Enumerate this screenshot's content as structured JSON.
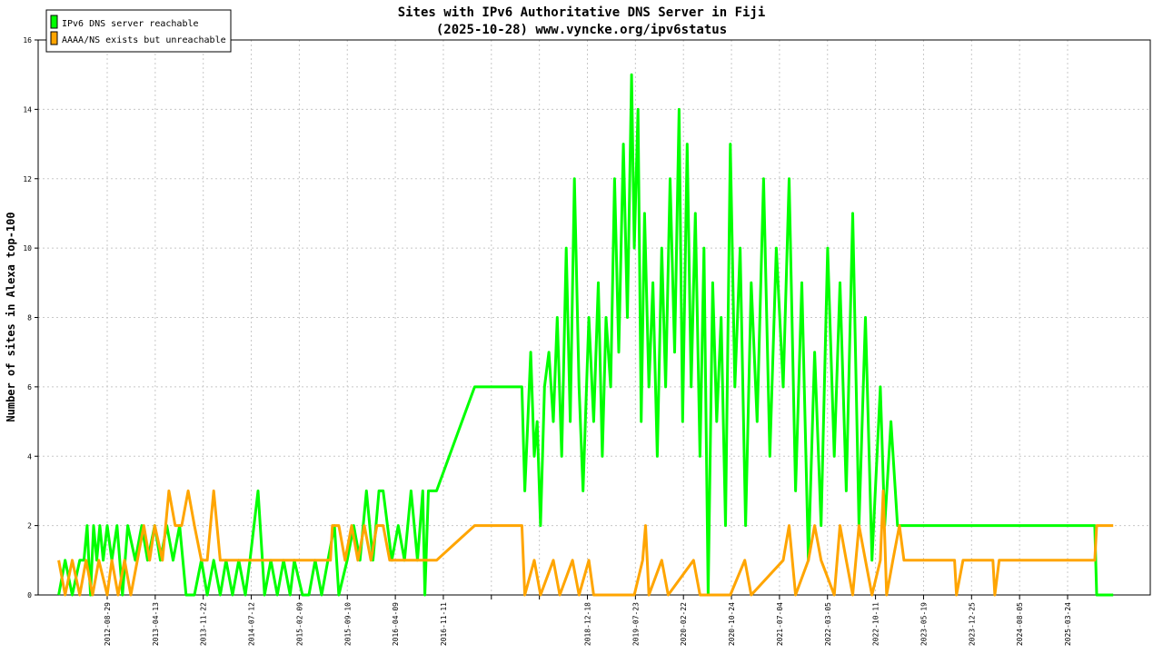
{
  "chart_data": {
    "type": "line",
    "title_line1": "Sites with IPv6 Authoritative DNS Server in Fiji",
    "title_line2": "(2025-10-28) www.vyncke.org/ipv6status",
    "xlabel": "",
    "ylabel": "Number of sites in Alexa top-100",
    "ylim": [
      0,
      16
    ],
    "yticks": [
      "0",
      "2",
      "4",
      "6",
      "8",
      "10",
      "12",
      "14",
      "16"
    ],
    "grid": true,
    "legend_position": "top-left",
    "x_ticks": [
      "2012-08-29",
      "2013-04-13",
      "2013-11-22",
      "2014-07-12",
      "2015-02-09",
      "2015-09-10",
      "2016-04-09",
      "2016-11-11",
      "",
      "",
      "2018-12-18",
      "2019-07-23",
      "2020-02-22",
      "2020-10-24",
      "2021-07-04",
      "2022-03-05",
      "2022-10-11",
      "2023-05-19",
      "2023-12-25",
      "2024-08-05",
      "2025-03-24"
    ],
    "series": [
      {
        "name": "IPv6 DNS server reachable",
        "color": "#00ff00",
        "points": [
          [
            "2012-01-10",
            0
          ],
          [
            "2012-02-10",
            1
          ],
          [
            "2012-03-15",
            0
          ],
          [
            "2012-04-20",
            1
          ],
          [
            "2012-05-10",
            1
          ],
          [
            "2012-05-25",
            2
          ],
          [
            "2012-06-10",
            0
          ],
          [
            "2012-06-25",
            2
          ],
          [
            "2012-07-10",
            1
          ],
          [
            "2012-07-25",
            2
          ],
          [
            "2012-08-10",
            1
          ],
          [
            "2012-08-29",
            2
          ],
          [
            "2012-09-20",
            1
          ],
          [
            "2012-10-15",
            2
          ],
          [
            "2012-11-10",
            0
          ],
          [
            "2012-12-05",
            2
          ],
          [
            "2013-01-10",
            1
          ],
          [
            "2013-02-10",
            2
          ],
          [
            "2013-03-10",
            1
          ],
          [
            "2013-04-13",
            2
          ],
          [
            "2013-05-10",
            1
          ],
          [
            "2013-06-10",
            2
          ],
          [
            "2013-07-10",
            1
          ],
          [
            "2013-08-10",
            2
          ],
          [
            "2013-09-10",
            0
          ],
          [
            "2013-10-20",
            0
          ],
          [
            "2013-11-22",
            1
          ],
          [
            "2013-12-20",
            0
          ],
          [
            "2014-01-20",
            1
          ],
          [
            "2014-02-20",
            0
          ],
          [
            "2014-03-20",
            1
          ],
          [
            "2014-04-20",
            0
          ],
          [
            "2014-05-20",
            1
          ],
          [
            "2014-06-20",
            0
          ],
          [
            "2014-07-12",
            1
          ],
          [
            "2014-08-20",
            3
          ],
          [
            "2014-09-20",
            0
          ],
          [
            "2014-10-20",
            1
          ],
          [
            "2014-11-20",
            0
          ],
          [
            "2014-12-20",
            1
          ],
          [
            "2015-01-20",
            0
          ],
          [
            "2015-02-09",
            1
          ],
          [
            "2015-03-20",
            0
          ],
          [
            "2015-04-20",
            0
          ],
          [
            "2015-05-20",
            1
          ],
          [
            "2015-06-20",
            0
          ],
          [
            "2015-07-20",
            1
          ],
          [
            "2015-08-20",
            2
          ],
          [
            "2015-09-10",
            0
          ],
          [
            "2015-10-20",
            1
          ],
          [
            "2015-11-20",
            2
          ],
          [
            "2015-12-20",
            1
          ],
          [
            "2016-01-20",
            3
          ],
          [
            "2016-02-20",
            1
          ],
          [
            "2016-03-20",
            3
          ],
          [
            "2016-04-09",
            3
          ],
          [
            "2016-05-20",
            1
          ],
          [
            "2016-06-20",
            2
          ],
          [
            "2016-07-20",
            1
          ],
          [
            "2016-08-20",
            3
          ],
          [
            "2016-09-20",
            1
          ],
          [
            "2016-10-15",
            3
          ],
          [
            "2016-10-25",
            0
          ],
          [
            "2016-11-11",
            3
          ],
          [
            "2016-12-20",
            3
          ],
          [
            "2017-06-20",
            6
          ],
          [
            "2018-02-01",
            6
          ],
          [
            "2018-02-15",
            3
          ],
          [
            "2018-03-01",
            5
          ],
          [
            "2018-03-15",
            7
          ],
          [
            "2018-04-01",
            4
          ],
          [
            "2018-04-15",
            5
          ],
          [
            "2018-05-01",
            2
          ],
          [
            "2018-05-20",
            6
          ],
          [
            "2018-06-10",
            7
          ],
          [
            "2018-07-01",
            5
          ],
          [
            "2018-07-20",
            8
          ],
          [
            "2018-08-10",
            4
          ],
          [
            "2018-09-01",
            10
          ],
          [
            "2018-09-20",
            5
          ],
          [
            "2018-10-10",
            12
          ],
          [
            "2018-11-01",
            6
          ],
          [
            "2018-11-20",
            3
          ],
          [
            "2018-12-18",
            8
          ],
          [
            "2019-01-10",
            5
          ],
          [
            "2019-02-01",
            9
          ],
          [
            "2019-02-20",
            4
          ],
          [
            "2019-03-10",
            8
          ],
          [
            "2019-04-01",
            6
          ],
          [
            "2019-04-20",
            12
          ],
          [
            "2019-05-10",
            7
          ],
          [
            "2019-06-01",
            13
          ],
          [
            "2019-06-20",
            8
          ],
          [
            "2019-07-10",
            15
          ],
          [
            "2019-07-23",
            10
          ],
          [
            "2019-08-10",
            14
          ],
          [
            "2019-08-25",
            5
          ],
          [
            "2019-09-10",
            11
          ],
          [
            "2019-10-01",
            6
          ],
          [
            "2019-10-20",
            9
          ],
          [
            "2019-11-10",
            4
          ],
          [
            "2019-12-01",
            10
          ],
          [
            "2019-12-20",
            6
          ],
          [
            "2020-01-10",
            12
          ],
          [
            "2020-02-01",
            7
          ],
          [
            "2020-02-22",
            14
          ],
          [
            "2020-03-10",
            5
          ],
          [
            "2020-04-01",
            13
          ],
          [
            "2020-04-20",
            6
          ],
          [
            "2020-05-10",
            11
          ],
          [
            "2020-06-01",
            4
          ],
          [
            "2020-06-20",
            10
          ],
          [
            "2020-07-10",
            0
          ],
          [
            "2020-08-01",
            9
          ],
          [
            "2020-08-20",
            5
          ],
          [
            "2020-09-10",
            8
          ],
          [
            "2020-10-01",
            2
          ],
          [
            "2020-10-24",
            13
          ],
          [
            "2020-11-15",
            6
          ],
          [
            "2020-12-10",
            10
          ],
          [
            "2021-01-05",
            2
          ],
          [
            "2021-02-01",
            9
          ],
          [
            "2021-03-01",
            5
          ],
          [
            "2021-04-01",
            12
          ],
          [
            "2021-05-01",
            4
          ],
          [
            "2021-06-01",
            10
          ],
          [
            "2021-07-04",
            6
          ],
          [
            "2021-08-01",
            12
          ],
          [
            "2021-09-01",
            3
          ],
          [
            "2021-10-01",
            9
          ],
          [
            "2021-11-01",
            1
          ],
          [
            "2021-12-01",
            7
          ],
          [
            "2022-01-01",
            2
          ],
          [
            "2022-02-01",
            10
          ],
          [
            "2022-03-05",
            4
          ],
          [
            "2022-04-01",
            9
          ],
          [
            "2022-05-01",
            3
          ],
          [
            "2022-06-01",
            11
          ],
          [
            "2022-07-01",
            2
          ],
          [
            "2022-08-01",
            8
          ],
          [
            "2022-09-01",
            1
          ],
          [
            "2022-10-11",
            6
          ],
          [
            "2022-11-01",
            2
          ],
          [
            "2022-12-01",
            5
          ],
          [
            "2023-01-01",
            2
          ],
          [
            "2025-01-01",
            2
          ],
          [
            "2025-08-01",
            2
          ],
          [
            "2025-08-10",
            0
          ],
          [
            "2025-10-28",
            0
          ]
        ]
      },
      {
        "name": "AAAA/NS exists but unreachable",
        "color": "#ffa500",
        "points": [
          [
            "2012-01-10",
            1
          ],
          [
            "2012-02-10",
            0
          ],
          [
            "2012-03-15",
            1
          ],
          [
            "2012-04-20",
            0
          ],
          [
            "2012-05-20",
            1
          ],
          [
            "2012-06-20",
            0
          ],
          [
            "2012-07-20",
            1
          ],
          [
            "2012-08-29",
            0
          ],
          [
            "2012-09-20",
            1
          ],
          [
            "2012-10-20",
            0
          ],
          [
            "2012-11-20",
            1
          ],
          [
            "2012-12-20",
            0
          ],
          [
            "2013-01-20",
            1
          ],
          [
            "2013-02-20",
            2
          ],
          [
            "2013-03-20",
            1
          ],
          [
            "2013-04-13",
            2
          ],
          [
            "2013-05-20",
            1
          ],
          [
            "2013-06-20",
            3
          ],
          [
            "2013-07-20",
            2
          ],
          [
            "2013-08-20",
            2
          ],
          [
            "2013-09-20",
            3
          ],
          [
            "2013-10-20",
            2
          ],
          [
            "2013-11-22",
            1
          ],
          [
            "2013-12-20",
            1
          ],
          [
            "2014-01-20",
            3
          ],
          [
            "2014-02-20",
            1
          ],
          [
            "2014-07-12",
            1
          ],
          [
            "2014-08-20",
            1
          ],
          [
            "2015-02-09",
            1
          ],
          [
            "2015-08-01",
            1
          ],
          [
            "2015-08-10",
            2
          ],
          [
            "2015-09-10",
            2
          ],
          [
            "2015-10-10",
            1
          ],
          [
            "2015-11-10",
            2
          ],
          [
            "2015-12-10",
            1
          ],
          [
            "2016-01-10",
            2
          ],
          [
            "2016-02-10",
            1
          ],
          [
            "2016-03-10",
            2
          ],
          [
            "2016-04-09",
            2
          ],
          [
            "2016-05-10",
            1
          ],
          [
            "2016-11-11",
            1
          ],
          [
            "2016-12-20",
            1
          ],
          [
            "2017-06-20",
            2
          ],
          [
            "2018-02-01",
            2
          ],
          [
            "2018-02-15",
            0
          ],
          [
            "2018-04-01",
            1
          ],
          [
            "2018-05-01",
            0
          ],
          [
            "2018-07-01",
            1
          ],
          [
            "2018-08-01",
            0
          ],
          [
            "2018-10-01",
            1
          ],
          [
            "2018-11-01",
            0
          ],
          [
            "2018-12-18",
            1
          ],
          [
            "2019-01-10",
            0
          ],
          [
            "2019-07-23",
            0
          ],
          [
            "2019-09-01",
            1
          ],
          [
            "2019-09-15",
            2
          ],
          [
            "2019-10-01",
            0
          ],
          [
            "2019-12-01",
            1
          ],
          [
            "2020-01-01",
            0
          ],
          [
            "2020-05-01",
            1
          ],
          [
            "2020-06-01",
            0
          ],
          [
            "2020-10-24",
            0
          ],
          [
            "2021-01-01",
            1
          ],
          [
            "2021-02-01",
            0
          ],
          [
            "2021-07-04",
            1
          ],
          [
            "2021-08-01",
            2
          ],
          [
            "2021-09-01",
            0
          ],
          [
            "2021-11-01",
            1
          ],
          [
            "2021-12-01",
            2
          ],
          [
            "2022-01-01",
            1
          ],
          [
            "2022-03-05",
            0
          ],
          [
            "2022-04-01",
            2
          ],
          [
            "2022-05-01",
            1
          ],
          [
            "2022-06-01",
            0
          ],
          [
            "2022-07-01",
            2
          ],
          [
            "2022-08-01",
            1
          ],
          [
            "2022-09-01",
            0
          ],
          [
            "2022-10-11",
            1
          ],
          [
            "2022-10-25",
            3
          ],
          [
            "2022-11-10",
            0
          ],
          [
            "2022-12-10",
            1
          ],
          [
            "2023-01-10",
            2
          ],
          [
            "2023-02-01",
            1
          ],
          [
            "2023-10-01",
            1
          ],
          [
            "2023-10-10",
            0
          ],
          [
            "2023-11-10",
            1
          ],
          [
            "2024-04-01",
            1
          ],
          [
            "2024-04-10",
            0
          ],
          [
            "2024-05-01",
            1
          ],
          [
            "2025-08-01",
            1
          ],
          [
            "2025-08-10",
            2
          ],
          [
            "2025-10-28",
            2
          ]
        ]
      }
    ]
  }
}
